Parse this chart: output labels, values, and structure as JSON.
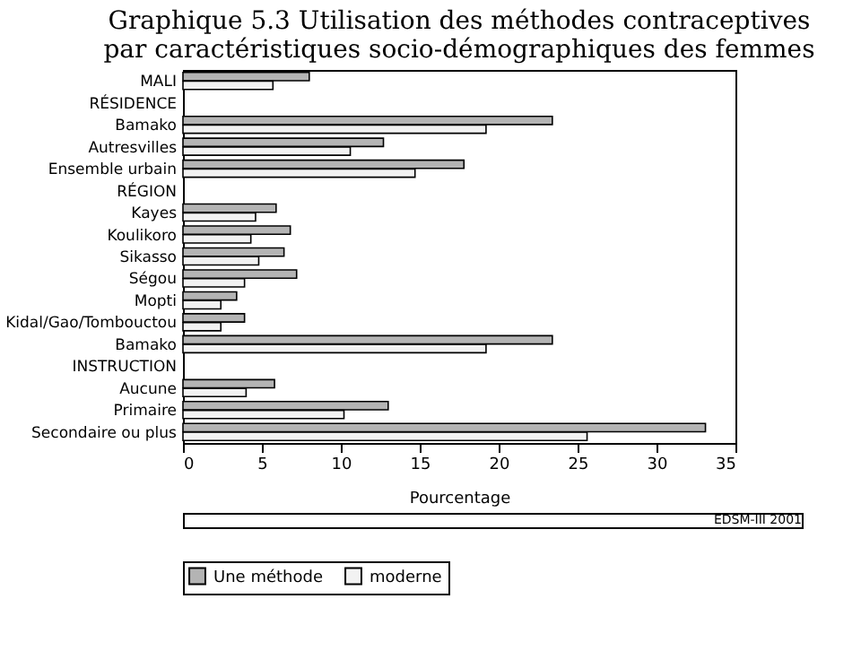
{
  "chart_data": {
    "type": "bar",
    "orientation": "horizontal",
    "title": "Graphique 5.3  Utilisation des méthodes contraceptives par caractéristiques socio-démographiques des femmes",
    "xlabel": "Pourcentage",
    "categories": [
      "MALI",
      "RÉSIDENCE",
      "Bamako",
      "Autresvilles",
      "Ensemble urbain",
      "RÉGION",
      "Kayes",
      "Koulikoro",
      "Sikasso",
      "Ségou",
      "Mopti",
      "Kidal/Gao/Tombouctou",
      "Bamako",
      "INSTRUCTION",
      "Aucune",
      "Primaire",
      "Secondaire ou plus"
    ],
    "series": [
      {
        "name": "Une méthode",
        "color": "#b4b4b4",
        "values": [
          8.0,
          null,
          23.4,
          12.7,
          17.8,
          null,
          5.9,
          6.8,
          6.4,
          7.2,
          3.4,
          3.9,
          23.4,
          null,
          5.8,
          13.0,
          33.1
        ]
      },
      {
        "name": "moderne",
        "color": "#f2f2f2",
        "values": [
          5.7,
          null,
          19.2,
          10.6,
          14.7,
          null,
          4.6,
          4.3,
          4.8,
          3.9,
          2.4,
          2.4,
          19.2,
          null,
          4.0,
          10.2,
          25.6
        ]
      }
    ],
    "xlim": [
      0,
      35
    ],
    "xticks": [
      0,
      5,
      10,
      15,
      20,
      25,
      30,
      35
    ],
    "grid": false,
    "legend": "bottom",
    "annotations": [
      "EDSM-III 2001"
    ]
  }
}
